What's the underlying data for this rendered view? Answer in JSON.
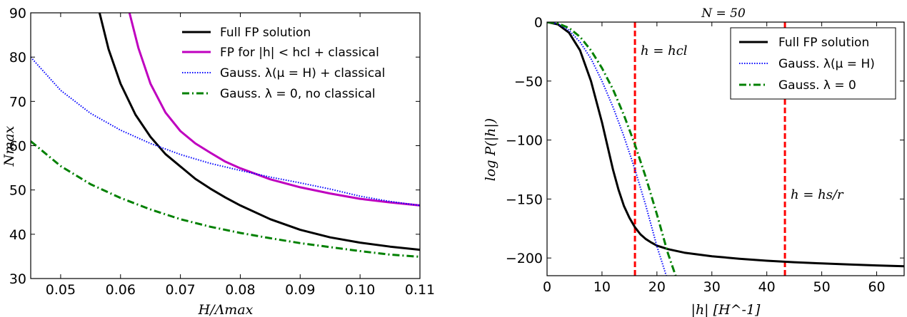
{
  "chart_data": [
    {
      "type": "line",
      "title": "",
      "xlabel": "H/Λmax",
      "ylabel": "Nmax",
      "xlim": [
        0.045,
        0.11
      ],
      "ylim": [
        30,
        90
      ],
      "xticks": [
        0.05,
        0.06,
        0.07,
        0.08,
        0.09,
        0.1,
        0.11
      ],
      "xtick_labels": [
        "0.05",
        "0.06",
        "0.07",
        "0.08",
        "0.09",
        "0.10",
        "0.11"
      ],
      "yticks": [
        30,
        40,
        50,
        60,
        70,
        80,
        90
      ],
      "ytick_labels": [
        "30",
        "40",
        "50",
        "60",
        "70",
        "80",
        "90"
      ],
      "grid": false,
      "legend_position": "top-right",
      "series": [
        {
          "name": "Full FP solution",
          "color": "#000000",
          "style": "solid",
          "x": [
            0.0565,
            0.058,
            0.06,
            0.0625,
            0.065,
            0.0675,
            0.07,
            0.0725,
            0.075,
            0.0775,
            0.08,
            0.085,
            0.09,
            0.095,
            0.1,
            0.105,
            0.11
          ],
          "y": [
            90,
            81.8,
            74,
            67,
            62,
            58.1,
            55.3,
            52.5,
            50.3,
            48.3,
            46.5,
            43.4,
            41,
            39.3,
            38.1,
            37.2,
            36.5
          ]
        },
        {
          "name": "FP for |h| < hcl + classical",
          "color": "#bf00bf",
          "style": "solid",
          "x": [
            0.0615,
            0.063,
            0.065,
            0.0675,
            0.07,
            0.0725,
            0.075,
            0.0775,
            0.08,
            0.085,
            0.09,
            0.095,
            0.1,
            0.105,
            0.11
          ],
          "y": [
            90,
            82,
            74,
            67.5,
            63.3,
            60.5,
            58.4,
            56.4,
            54.9,
            52.4,
            50.6,
            49.2,
            48,
            47.2,
            46.5
          ]
        },
        {
          "name": "Gauss. λ(μ = H) + classical",
          "color": "#0000ff",
          "style": "dotted",
          "x": [
            0.045,
            0.05,
            0.055,
            0.06,
            0.065,
            0.07,
            0.075,
            0.08,
            0.085,
            0.09,
            0.095,
            0.1,
            0.105,
            0.11
          ],
          "y": [
            80,
            72.5,
            67.3,
            63.5,
            60.5,
            58,
            56,
            54.4,
            52.9,
            51.6,
            50.2,
            48.6,
            47.4,
            46.5
          ]
        },
        {
          "name": "Gauss. λ = 0, no classical",
          "color": "#008000",
          "style": "dashdot",
          "x": [
            0.045,
            0.05,
            0.055,
            0.06,
            0.065,
            0.07,
            0.075,
            0.08,
            0.085,
            0.09,
            0.095,
            0.1,
            0.105,
            0.11
          ],
          "y": [
            61,
            55.4,
            51.3,
            48.2,
            45.6,
            43.4,
            41.7,
            40.3,
            39.1,
            38,
            37.1,
            36.2,
            35.4,
            34.9
          ]
        }
      ]
    },
    {
      "type": "line",
      "title": "N = 50",
      "xlabel": "|h| [H^-1]",
      "ylabel": "log P(|h|)",
      "xlim": [
        0,
        65
      ],
      "ylim": [
        -215,
        0
      ],
      "xticks": [
        0,
        10,
        20,
        30,
        40,
        50,
        60
      ],
      "xtick_labels": [
        "0",
        "10",
        "20",
        "30",
        "40",
        "50",
        "60"
      ],
      "yticks": [
        0,
        -50,
        -100,
        -150,
        -200
      ],
      "ytick_labels": [
        "0",
        "−50",
        "−100",
        "−150",
        "−200"
      ],
      "grid": false,
      "legend_position": "top-right",
      "annotations": [
        {
          "text": "h = hcl",
          "x": 16
        },
        {
          "text": "h = hs/r",
          "x": 43.3
        }
      ],
      "vlines": [
        16,
        43.3
      ],
      "series": [
        {
          "name": "Full FP solution",
          "color": "#000000",
          "style": "solid",
          "x": [
            0,
            2,
            4,
            6,
            8,
            10,
            11,
            12,
            13,
            14,
            15,
            16,
            17,
            18,
            19,
            20,
            22,
            25,
            30,
            35,
            40,
            45,
            50,
            55,
            60,
            65
          ],
          "y": [
            0,
            -2,
            -9,
            -24,
            -50,
            -85,
            -105,
            -125,
            -142,
            -156,
            -166,
            -174,
            -180,
            -184,
            -187,
            -189.5,
            -192.5,
            -195.5,
            -198.5,
            -200.6,
            -202.3,
            -203.6,
            -204.6,
            -205.5,
            -206.3,
            -207
          ]
        },
        {
          "name": "Gauss. λ(μ = H)",
          "color": "#0000ff",
          "style": "dotted",
          "x": [
            0,
            2,
            4,
            6,
            8,
            10,
            12,
            14,
            16,
            18,
            20,
            21.7
          ],
          "y": [
            0,
            -1.5,
            -7,
            -17,
            -31,
            -50,
            -72,
            -97,
            -125,
            -156,
            -190,
            -215
          ]
        },
        {
          "name": "Gauss. λ = 0",
          "color": "#008000",
          "style": "dashdot",
          "x": [
            0,
            2,
            4,
            6,
            8,
            10,
            12,
            14,
            16,
            18,
            20,
            22,
            23.4
          ],
          "y": [
            0,
            -1.2,
            -5,
            -12.5,
            -24,
            -39,
            -57,
            -79,
            -104,
            -132,
            -163,
            -196,
            -215
          ]
        }
      ]
    }
  ]
}
